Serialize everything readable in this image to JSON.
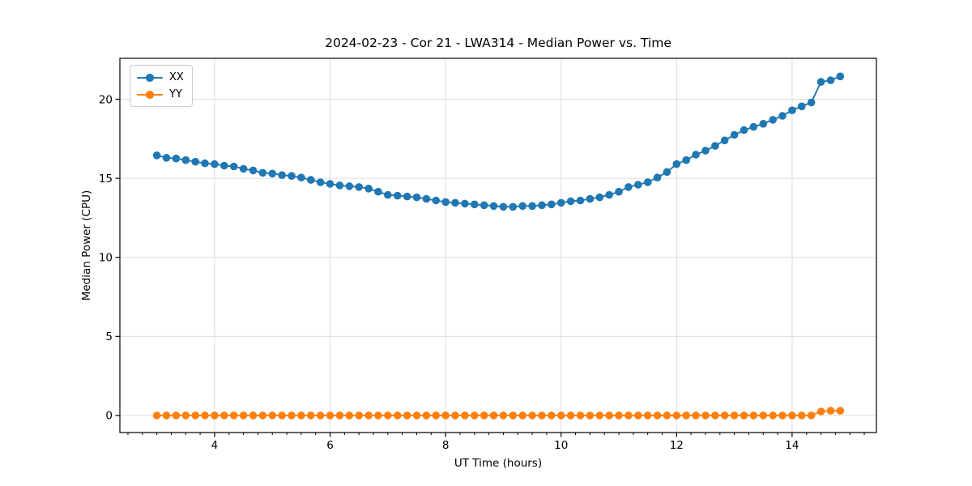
{
  "figure": {
    "background": "#ffffff",
    "text_color": "#000000",
    "spine_color": "#000000"
  },
  "chart_data": {
    "type": "line",
    "title": "2024-02-23 - Cor 21 - LWA314 - Median Power vs. Time",
    "xlabel": "UT Time (hours)",
    "ylabel": "Median Power (CPU)",
    "xlim": [
      2.36,
      15.46
    ],
    "ylim": [
      -1.08,
      22.59
    ],
    "xticks": [
      4,
      6,
      8,
      10,
      12,
      14
    ],
    "yticks": [
      0,
      5,
      10,
      15,
      20
    ],
    "x_minor_step": 0.25,
    "grid": true,
    "grid_color": "#dcdcdc",
    "legend_position": "upper-left",
    "marker": "o",
    "x": [
      3.0,
      3.167,
      3.333,
      3.5,
      3.667,
      3.833,
      4.0,
      4.167,
      4.333,
      4.5,
      4.667,
      4.833,
      5.0,
      5.167,
      5.333,
      5.5,
      5.667,
      5.833,
      6.0,
      6.167,
      6.333,
      6.5,
      6.667,
      6.833,
      7.0,
      7.167,
      7.333,
      7.5,
      7.667,
      7.833,
      8.0,
      8.167,
      8.333,
      8.5,
      8.667,
      8.833,
      9.0,
      9.167,
      9.333,
      9.5,
      9.667,
      9.833,
      10.0,
      10.167,
      10.333,
      10.5,
      10.667,
      10.833,
      11.0,
      11.167,
      11.333,
      11.5,
      11.667,
      11.833,
      12.0,
      12.167,
      12.333,
      12.5,
      12.667,
      12.833,
      13.0,
      13.167,
      13.333,
      13.5,
      13.667,
      13.833,
      14.0,
      14.167,
      14.333,
      14.5,
      14.667,
      14.833
    ],
    "series": [
      {
        "name": "XX",
        "color": "#1f77b4",
        "values": [
          16.45,
          16.3,
          16.25,
          16.15,
          16.05,
          15.95,
          15.9,
          15.8,
          15.75,
          15.6,
          15.5,
          15.35,
          15.3,
          15.2,
          15.15,
          15.05,
          14.9,
          14.75,
          14.65,
          14.55,
          14.5,
          14.45,
          14.35,
          14.15,
          13.95,
          13.9,
          13.85,
          13.8,
          13.7,
          13.6,
          13.5,
          13.45,
          13.4,
          13.35,
          13.3,
          13.25,
          13.2,
          13.2,
          13.25,
          13.25,
          13.3,
          13.35,
          13.45,
          13.55,
          13.6,
          13.7,
          13.8,
          13.95,
          14.15,
          14.45,
          14.6,
          14.75,
          15.05,
          15.4,
          15.9,
          16.15,
          16.5,
          16.75,
          17.05,
          17.4,
          17.75,
          18.05,
          18.25,
          18.45,
          18.7,
          18.95,
          19.3,
          19.55,
          19.8,
          21.1,
          21.2,
          21.45
        ]
      },
      {
        "name": "YY",
        "color": "#ff7f0e",
        "values": [
          0,
          0,
          0,
          0,
          0,
          0,
          0,
          0,
          0,
          0,
          0,
          0,
          0,
          0,
          0,
          0,
          0,
          0,
          0,
          0,
          0,
          0,
          0,
          0,
          0,
          0,
          0,
          0,
          0,
          0,
          0,
          0,
          0,
          0,
          0,
          0,
          0,
          0,
          0,
          0,
          0,
          0,
          0,
          0,
          0,
          0,
          0,
          0,
          0,
          0,
          0,
          0,
          0,
          0,
          0,
          0,
          0,
          0,
          0,
          0,
          0,
          0,
          0,
          0,
          0,
          0,
          0,
          0,
          0,
          0.25,
          0.3,
          0.3
        ]
      }
    ]
  }
}
